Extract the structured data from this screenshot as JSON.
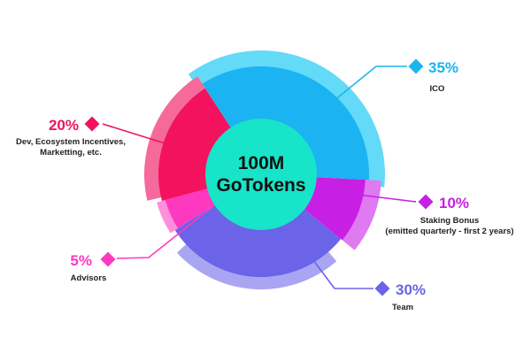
{
  "chart_data": {
    "type": "pie",
    "center_label": [
      "100M",
      "GoTokens"
    ],
    "slices": [
      {
        "label": "ICO",
        "percent": "35%",
        "value": 35,
        "color": "#1BB3F2",
        "outer_color": "#63DAF7"
      },
      {
        "label": "Staking Bonus",
        "sublabel": "(emitted quarterly - first 2 years)",
        "percent": "10%",
        "value": 10,
        "color": "#C81FE5",
        "outer_color": "#DF7AF0"
      },
      {
        "label": "Team",
        "percent": "30%",
        "value": 30,
        "color": "#6B63E8",
        "outer_color": "#A9A5F2"
      },
      {
        "label": "Advisors",
        "percent": "5%",
        "value": 5,
        "color": "#FF38C0",
        "outer_color": "#FF8FDB"
      },
      {
        "label": "Dev, Ecosystem Incentives,",
        "sublabel": "Marketting, etc.",
        "percent": "20%",
        "value": 20,
        "color": "#F2125D",
        "outer_color": "#F56A9A"
      }
    ]
  },
  "colors": {
    "center_fill": "#17E4C9",
    "label_text": "#222222"
  }
}
